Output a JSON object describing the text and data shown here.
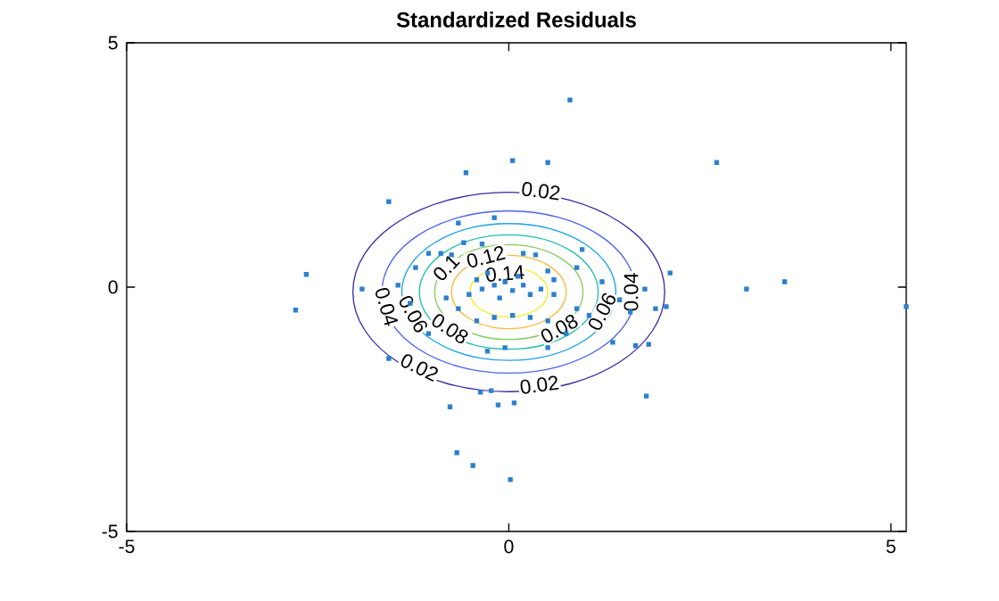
{
  "chart_data": {
    "type": "scatter",
    "title": "Standardized Residuals",
    "xlim": [
      -5,
      5.2
    ],
    "ylim": [
      -5,
      5
    ],
    "xticks": [
      -5,
      0,
      5
    ],
    "yticks": [
      -5,
      0,
      5
    ],
    "grid": false,
    "series": [
      {
        "marker": "square",
        "color": "#2a7fd0",
        "x": [
          0.8,
          0.05,
          0.51,
          -0.56,
          -1.57,
          -0.19,
          -0.66,
          0.96,
          2.72,
          2.11,
          3.11,
          3.61,
          5.2,
          1.78,
          1.92,
          2.06,
          1.59,
          1.36,
          1.66,
          1.83,
          1.8,
          -2.65,
          -2.79,
          -1.92,
          -1.57,
          -0.77,
          -0.37,
          -0.23,
          -0.14,
          0.07,
          -0.68,
          -0.47,
          0.02,
          -0.59,
          -0.35,
          -0.89,
          -0.75,
          0.19,
          0.35,
          0.51,
          0.59,
          -0.05,
          -0.19,
          -0.35,
          0.05,
          0.19,
          0.28,
          -0.12,
          -0.42,
          -0.28,
          0.12,
          0.42,
          0.59,
          -0.52,
          -0.82,
          -0.66,
          -0.42,
          -0.19,
          0.05,
          0.28,
          0.51,
          0.89,
          1.05,
          0.75,
          -0.28,
          -0.05,
          0.51,
          -1.05,
          -1.29,
          -1.22,
          1.22,
          1.45,
          -1.45,
          0.89,
          -1.05
        ],
        "values": [
          3.83,
          2.59,
          2.55,
          2.34,
          1.75,
          1.42,
          1.31,
          0.77,
          2.55,
          0.29,
          -0.04,
          0.11,
          -0.4,
          -0.04,
          -0.44,
          -0.4,
          -0.51,
          -1.13,
          -1.2,
          -1.17,
          -2.23,
          0.26,
          -0.47,
          -0.04,
          -1.46,
          -2.45,
          -2.15,
          -2.12,
          -2.41,
          -2.37,
          -3.39,
          -3.65,
          -3.94,
          0.91,
          0.88,
          0.69,
          0.66,
          0.69,
          0.66,
          0.33,
          0.15,
          0.11,
          0.04,
          -0.04,
          -0.07,
          0.04,
          -0.15,
          -0.22,
          0.15,
          0.29,
          0.22,
          -0.04,
          -0.15,
          -0.15,
          -0.22,
          -0.44,
          -0.69,
          -0.62,
          -0.58,
          -0.62,
          -0.69,
          -0.44,
          -0.58,
          -0.95,
          -1.31,
          -1.24,
          -1.24,
          -0.95,
          -0.33,
          0.4,
          0.11,
          -0.26,
          0.04,
          0.4,
          0.69
        ]
      }
    ],
    "annotations": [
      {
        "text": "0.02",
        "x": 0.42,
        "y": 1.97
      },
      {
        "text": "0.02",
        "x": -1.17,
        "y": -1.64
      },
      {
        "text": "0.02",
        "x": 0.4,
        "y": -2.0
      },
      {
        "text": "0.04",
        "x": 1.6,
        "y": -0.1
      },
      {
        "text": "0.04",
        "x": -1.6,
        "y": -0.4
      },
      {
        "text": "0.06",
        "x": 1.22,
        "y": -0.5
      },
      {
        "text": "0.06",
        "x": -1.25,
        "y": -0.55
      },
      {
        "text": "0.08",
        "x": -0.77,
        "y": -0.85
      },
      {
        "text": "0.08",
        "x": 0.66,
        "y": -0.85
      },
      {
        "text": "0.1",
        "x": -0.82,
        "y": 0.4
      },
      {
        "text": "0.12",
        "x": -0.3,
        "y": 0.62
      },
      {
        "text": "0.14",
        "x": -0.05,
        "y": 0.28
      }
    ]
  }
}
